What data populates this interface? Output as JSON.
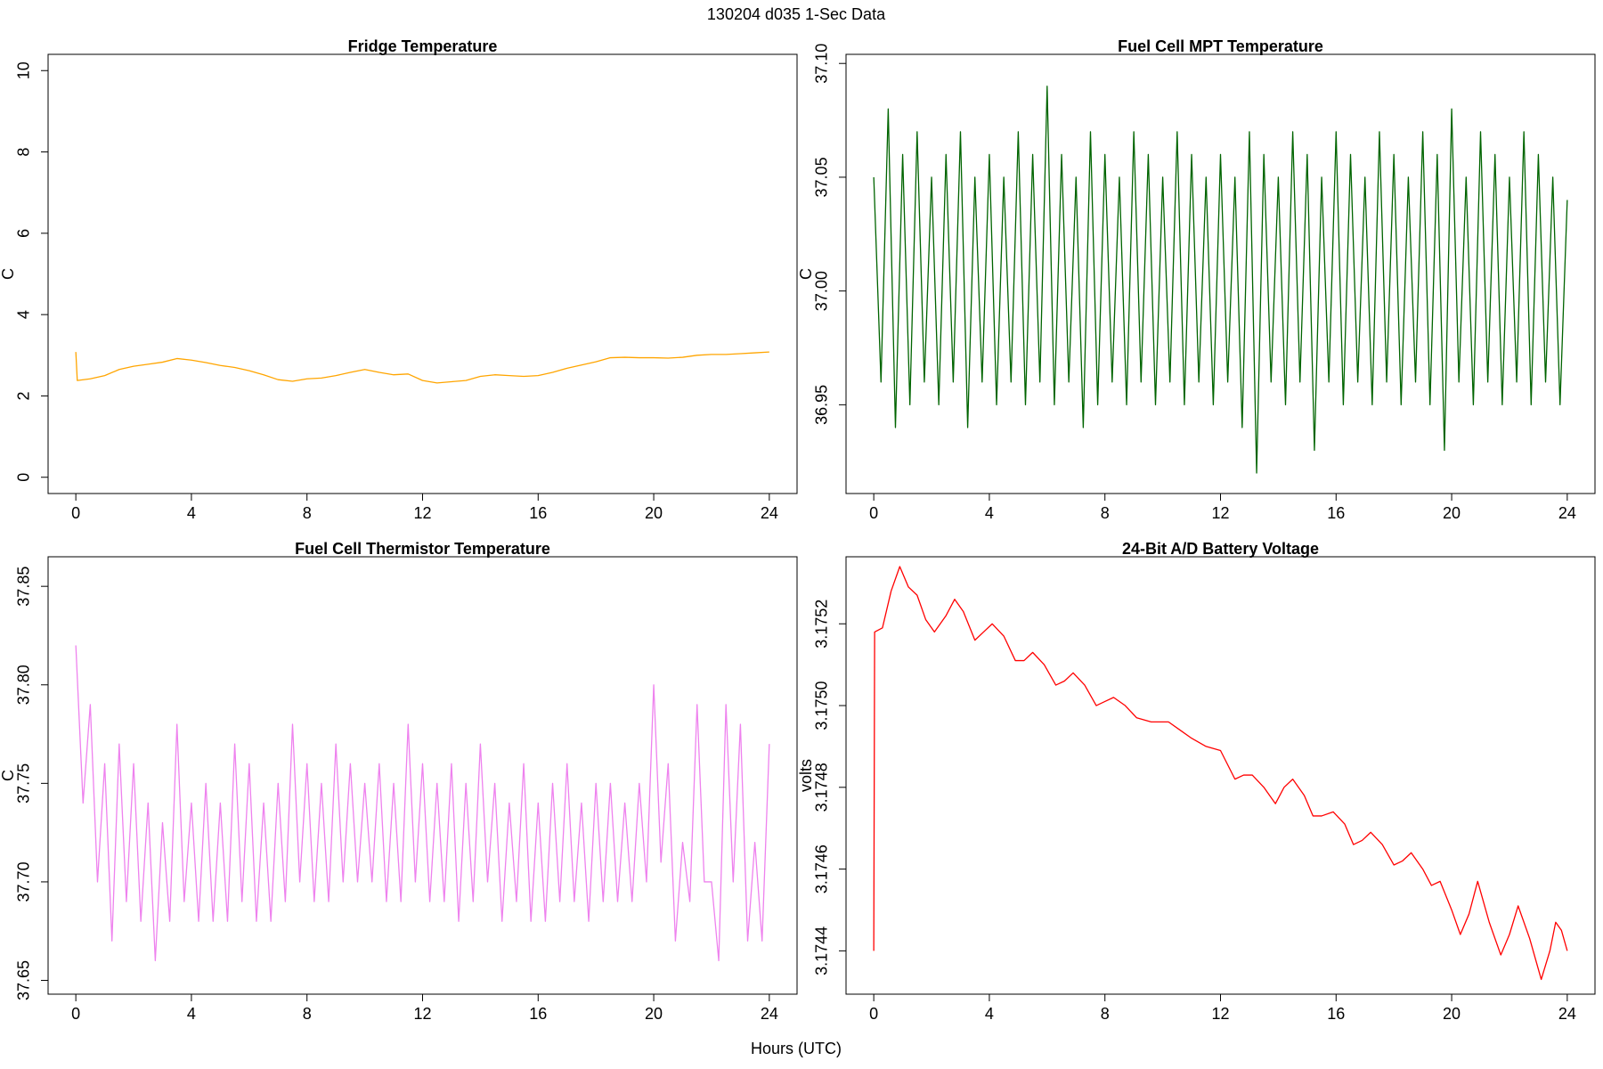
{
  "title": "130204   d035   1-Sec Data",
  "xlabel": "Hours (UTC)",
  "chart_data": [
    {
      "type": "line",
      "title": "Fridge Temperature",
      "ylabel": "C",
      "color": "#ffa500",
      "xlim": [
        -0.96,
        24.96
      ],
      "xticks": [
        0,
        4,
        8,
        12,
        16,
        20,
        24
      ],
      "ylim": [
        -0.4,
        10.4
      ],
      "yticks": [
        0,
        2,
        4,
        6,
        8,
        10
      ],
      "x": [
        0,
        0.05,
        0.5,
        1,
        1.5,
        2,
        2.5,
        3,
        3.5,
        4,
        4.5,
        5,
        5.5,
        6,
        6.5,
        7,
        7.5,
        8,
        8.5,
        9,
        9.5,
        10,
        10.5,
        11,
        11.5,
        12,
        12.5,
        13,
        13.5,
        14,
        14.5,
        15,
        15.5,
        16,
        16.5,
        17,
        17.5,
        18,
        18.5,
        19,
        19.5,
        20,
        20.5,
        21,
        21.5,
        22,
        22.5,
        23,
        23.5,
        24
      ],
      "values": [
        3.08,
        2.38,
        2.42,
        2.5,
        2.65,
        2.73,
        2.78,
        2.83,
        2.92,
        2.88,
        2.82,
        2.75,
        2.7,
        2.62,
        2.52,
        2.4,
        2.36,
        2.42,
        2.44,
        2.5,
        2.58,
        2.65,
        2.58,
        2.52,
        2.54,
        2.38,
        2.32,
        2.35,
        2.38,
        2.48,
        2.52,
        2.5,
        2.48,
        2.5,
        2.58,
        2.68,
        2.76,
        2.84,
        2.94,
        2.95,
        2.94,
        2.94,
        2.93,
        2.95,
        3.0,
        3.02,
        3.02,
        3.04,
        3.06,
        3.08
      ]
    },
    {
      "type": "line",
      "title": "Fuel Cell MPT Temperature",
      "ylabel": "C",
      "color": "#006400",
      "xlim": [
        -0.96,
        24.96
      ],
      "xticks": [
        0,
        4,
        8,
        12,
        16,
        20,
        24
      ],
      "ylim": [
        36.911,
        37.104
      ],
      "yticks": [
        36.95,
        {
          "value": 37.0,
          "label": "37.00"
        },
        37.05,
        {
          "value": 37.1,
          "label": "37.10"
        }
      ],
      "x": [
        0,
        0.25,
        0.5,
        0.75,
        1,
        1.25,
        1.5,
        1.75,
        2,
        2.25,
        2.5,
        2.75,
        3,
        3.25,
        3.5,
        3.75,
        4,
        4.25,
        4.5,
        4.75,
        5,
        5.25,
        5.5,
        5.75,
        6,
        6.25,
        6.5,
        6.75,
        7,
        7.25,
        7.5,
        7.75,
        8,
        8.25,
        8.5,
        8.75,
        9,
        9.25,
        9.5,
        9.75,
        10,
        10.25,
        10.5,
        10.75,
        11,
        11.25,
        11.5,
        11.75,
        12,
        12.25,
        12.5,
        12.75,
        13,
        13.25,
        13.5,
        13.75,
        14,
        14.25,
        14.5,
        14.75,
        15,
        15.25,
        15.5,
        15.75,
        16,
        16.25,
        16.5,
        16.75,
        17,
        17.25,
        17.5,
        17.75,
        18,
        18.25,
        18.5,
        18.75,
        19,
        19.25,
        19.5,
        19.75,
        20,
        20.25,
        20.5,
        20.75,
        21,
        21.25,
        21.5,
        21.75,
        22,
        22.25,
        22.5,
        22.75,
        23,
        23.25,
        23.5,
        23.75,
        24
      ],
      "values": [
        37.05,
        36.96,
        37.08,
        36.94,
        37.06,
        36.95,
        37.07,
        36.96,
        37.05,
        36.95,
        37.06,
        36.96,
        37.07,
        36.94,
        37.05,
        36.96,
        37.06,
        36.95,
        37.05,
        36.96,
        37.07,
        36.95,
        37.06,
        36.96,
        37.09,
        36.95,
        37.06,
        36.96,
        37.05,
        36.94,
        37.07,
        36.95,
        37.06,
        36.96,
        37.05,
        36.95,
        37.07,
        36.96,
        37.06,
        36.95,
        37.05,
        36.96,
        37.07,
        36.95,
        37.06,
        36.96,
        37.05,
        36.95,
        37.06,
        36.96,
        37.05,
        36.94,
        37.07,
        36.92,
        37.06,
        36.96,
        37.05,
        36.95,
        37.07,
        36.96,
        37.06,
        36.93,
        37.05,
        36.96,
        37.07,
        36.95,
        37.06,
        36.96,
        37.05,
        36.95,
        37.07,
        36.96,
        37.06,
        36.95,
        37.05,
        36.96,
        37.07,
        36.95,
        37.06,
        36.93,
        37.08,
        36.96,
        37.05,
        36.95,
        37.07,
        36.96,
        37.06,
        36.95,
        37.05,
        36.96,
        37.07,
        36.95,
        37.06,
        36.96,
        37.05,
        36.95,
        37.04
      ]
    },
    {
      "type": "line",
      "title": "Fuel Cell Thermistor Temperature",
      "ylabel": "C",
      "color": "#ee82ee",
      "xlim": [
        -0.96,
        24.96
      ],
      "xticks": [
        0,
        4,
        8,
        12,
        16,
        20,
        24
      ],
      "ylim": [
        37.643,
        37.865
      ],
      "yticks": [
        37.65,
        {
          "value": 37.7,
          "label": "37.70"
        },
        37.75,
        {
          "value": 37.8,
          "label": "37.80"
        },
        37.85
      ],
      "x": [
        0,
        0.25,
        0.5,
        0.75,
        1,
        1.25,
        1.5,
        1.75,
        2,
        2.25,
        2.5,
        2.75,
        3,
        3.25,
        3.5,
        3.75,
        4,
        4.25,
        4.5,
        4.75,
        5,
        5.25,
        5.5,
        5.75,
        6,
        6.25,
        6.5,
        6.75,
        7,
        7.25,
        7.5,
        7.75,
        8,
        8.25,
        8.5,
        8.75,
        9,
        9.25,
        9.5,
        9.75,
        10,
        10.25,
        10.5,
        10.75,
        11,
        11.25,
        11.5,
        11.75,
        12,
        12.25,
        12.5,
        12.75,
        13,
        13.25,
        13.5,
        13.75,
        14,
        14.25,
        14.5,
        14.75,
        15,
        15.25,
        15.5,
        15.75,
        16,
        16.25,
        16.5,
        16.75,
        17,
        17.25,
        17.5,
        17.75,
        18,
        18.25,
        18.5,
        18.75,
        19,
        19.25,
        19.5,
        19.75,
        20,
        20.25,
        20.5,
        20.75,
        21,
        21.25,
        21.5,
        21.75,
        22,
        22.25,
        22.5,
        22.75,
        23,
        23.25,
        23.5,
        23.75,
        24
      ],
      "values": [
        37.82,
        37.74,
        37.79,
        37.7,
        37.76,
        37.67,
        37.77,
        37.69,
        37.76,
        37.68,
        37.74,
        37.66,
        37.73,
        37.68,
        37.78,
        37.69,
        37.74,
        37.68,
        37.75,
        37.68,
        37.74,
        37.68,
        37.77,
        37.69,
        37.76,
        37.68,
        37.74,
        37.68,
        37.75,
        37.69,
        37.78,
        37.7,
        37.76,
        37.69,
        37.75,
        37.69,
        37.77,
        37.7,
        37.76,
        37.7,
        37.75,
        37.7,
        37.76,
        37.69,
        37.75,
        37.69,
        37.78,
        37.7,
        37.76,
        37.69,
        37.75,
        37.69,
        37.76,
        37.68,
        37.75,
        37.69,
        37.77,
        37.7,
        37.75,
        37.68,
        37.74,
        37.69,
        37.76,
        37.68,
        37.74,
        37.68,
        37.75,
        37.69,
        37.76,
        37.69,
        37.74,
        37.68,
        37.75,
        37.69,
        37.75,
        37.69,
        37.74,
        37.69,
        37.75,
        37.7,
        37.8,
        37.71,
        37.76,
        37.67,
        37.72,
        37.69,
        37.79,
        37.7,
        37.7,
        37.66,
        37.79,
        37.7,
        37.78,
        37.67,
        37.72,
        37.67,
        37.77
      ]
    },
    {
      "type": "line",
      "title": "24-Bit A/D Battery Voltage",
      "ylabel": "volts",
      "color": "#ff0000",
      "xlim": [
        -0.96,
        24.96
      ],
      "xticks": [
        0,
        4,
        8,
        12,
        16,
        20,
        24
      ],
      "ylim": [
        3.174294,
        3.175364
      ],
      "yticks": [
        3.1744,
        3.1746,
        3.1748,
        {
          "value": 3.175,
          "label": "3.1750"
        },
        3.1752
      ],
      "x": [
        0,
        0.03,
        0.3,
        0.6,
        0.9,
        1.2,
        1.5,
        1.8,
        2.1,
        2.5,
        2.8,
        3.1,
        3.5,
        3.8,
        4.1,
        4.5,
        4.9,
        5.2,
        5.5,
        5.9,
        6.3,
        6.6,
        6.9,
        7.3,
        7.7,
        8,
        8.3,
        8.7,
        9.1,
        9.6,
        10.2,
        10.6,
        11,
        11.5,
        12,
        12.5,
        12.8,
        13.1,
        13.5,
        13.9,
        14.2,
        14.5,
        14.9,
        15.2,
        15.5,
        15.9,
        16.3,
        16.6,
        16.9,
        17.2,
        17.6,
        18,
        18.3,
        18.6,
        19,
        19.3,
        19.6,
        20,
        20.3,
        20.6,
        20.9,
        21.3,
        21.7,
        22,
        22.3,
        22.7,
        23.1,
        23.4,
        23.6,
        23.8,
        24
      ],
      "values": [
        3.1744,
        3.17518,
        3.17519,
        3.17528,
        3.17534,
        3.17529,
        3.17527,
        3.17521,
        3.17518,
        3.17522,
        3.17526,
        3.17523,
        3.17516,
        3.17518,
        3.1752,
        3.17517,
        3.17511,
        3.17511,
        3.17513,
        3.1751,
        3.17505,
        3.17506,
        3.17508,
        3.17505,
        3.175,
        3.17501,
        3.17502,
        3.175,
        3.17497,
        3.17496,
        3.17496,
        3.17494,
        3.17492,
        3.1749,
        3.17489,
        3.17482,
        3.17483,
        3.17483,
        3.1748,
        3.17476,
        3.1748,
        3.17482,
        3.17478,
        3.17473,
        3.17473,
        3.17474,
        3.17471,
        3.17466,
        3.17467,
        3.17469,
        3.17466,
        3.17461,
        3.17462,
        3.17464,
        3.1746,
        3.17456,
        3.17457,
        3.1745,
        3.17444,
        3.17449,
        3.17457,
        3.17447,
        3.17439,
        3.17444,
        3.17451,
        3.17443,
        3.17433,
        3.1744,
        3.17447,
        3.17445,
        3.1744
      ]
    }
  ]
}
